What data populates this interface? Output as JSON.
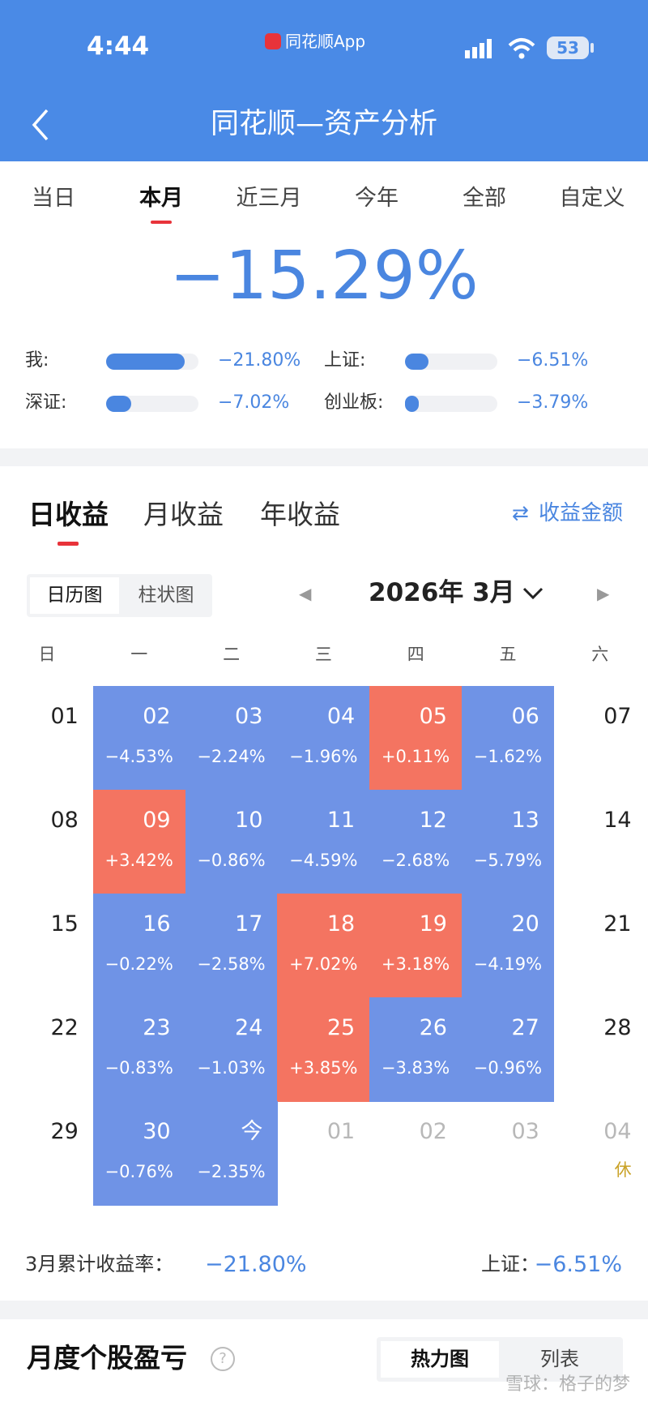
{
  "status_bar": {
    "time": "4:44",
    "app": "同花顺App",
    "battery": "53"
  },
  "header": {
    "title": "同花顺—资产分析"
  },
  "period_tabs": {
    "items": [
      "当日",
      "本月",
      "近三月",
      "今年",
      "全部",
      "自定义"
    ],
    "active": 1
  },
  "summary": {
    "return": "−15.29%",
    "compare": [
      {
        "name": "我:",
        "value": -21.8,
        "label": "−21.80%"
      },
      {
        "name": "上证:",
        "value": -6.51,
        "label": "−6.51%"
      },
      {
        "name": "深证:",
        "value": -7.02,
        "label": "−7.02%"
      },
      {
        "name": "创业板:",
        "value": -3.79,
        "label": "−3.79%"
      }
    ]
  },
  "section_tabs": {
    "items": [
      "日收益",
      "月收益",
      "年收益"
    ],
    "active": 0,
    "link": "收益金额"
  },
  "view_toggle": {
    "items": [
      "日历图",
      "柱状图"
    ],
    "active": 0
  },
  "month": "2026年 3月",
  "weekdays": [
    "日",
    "一",
    "二",
    "三",
    "四",
    "五",
    "六"
  ],
  "weeks": [
    [
      {
        "day": "01"
      },
      {
        "day": "02",
        "value": -4.53,
        "label": "−4.53%"
      },
      {
        "day": "03",
        "value": -2.24,
        "label": "−2.24%"
      },
      {
        "day": "04",
        "value": -1.96,
        "label": "−1.96%"
      },
      {
        "day": "05",
        "value": 0.11,
        "label": "+0.11%"
      },
      {
        "day": "06",
        "value": -1.62,
        "label": "−1.62%"
      },
      {
        "day": "07"
      }
    ],
    [
      {
        "day": "08"
      },
      {
        "day": "09",
        "value": 3.42,
        "label": "+3.42%"
      },
      {
        "day": "10",
        "value": -0.86,
        "label": "−0.86%"
      },
      {
        "day": "11",
        "value": -4.59,
        "label": "−4.59%"
      },
      {
        "day": "12",
        "value": -2.68,
        "label": "−2.68%"
      },
      {
        "day": "13",
        "value": -5.79,
        "label": "−5.79%"
      },
      {
        "day": "14"
      }
    ],
    [
      {
        "day": "15"
      },
      {
        "day": "16",
        "value": -0.22,
        "label": "−0.22%"
      },
      {
        "day": "17",
        "value": -2.58,
        "label": "−2.58%"
      },
      {
        "day": "18",
        "value": 7.02,
        "label": "+7.02%"
      },
      {
        "day": "19",
        "value": 3.18,
        "label": "+3.18%"
      },
      {
        "day": "20",
        "value": -4.19,
        "label": "−4.19%"
      },
      {
        "day": "21"
      }
    ],
    [
      {
        "day": "22"
      },
      {
        "day": "23",
        "value": -0.83,
        "label": "−0.83%"
      },
      {
        "day": "24",
        "value": -1.03,
        "label": "−1.03%"
      },
      {
        "day": "25",
        "value": 3.85,
        "label": "+3.85%"
      },
      {
        "day": "26",
        "value": -3.83,
        "label": "−3.83%"
      },
      {
        "day": "27",
        "value": -0.96,
        "label": "−0.96%"
      },
      {
        "day": "28"
      }
    ],
    [
      {
        "day": "29"
      },
      {
        "day": "30",
        "value": -0.76,
        "label": "−0.76%"
      },
      {
        "day": "今",
        "value": -2.35,
        "label": "−2.35%"
      },
      {
        "day": "01",
        "other_month": true
      },
      {
        "day": "02",
        "other_month": true
      },
      {
        "day": "03",
        "other_month": true
      },
      {
        "day": "04",
        "other_month": true,
        "note": "休"
      }
    ]
  ],
  "footer_summary": {
    "label": "3月累计收益率：",
    "value": "−21.80%",
    "index_label": "上证：",
    "index_value": "−6.51%"
  },
  "bottom": {
    "title": "月度个股盈亏",
    "toggle": [
      "热力图",
      "列表"
    ],
    "active": 0
  },
  "watermark": "雪球：格子的梦"
}
